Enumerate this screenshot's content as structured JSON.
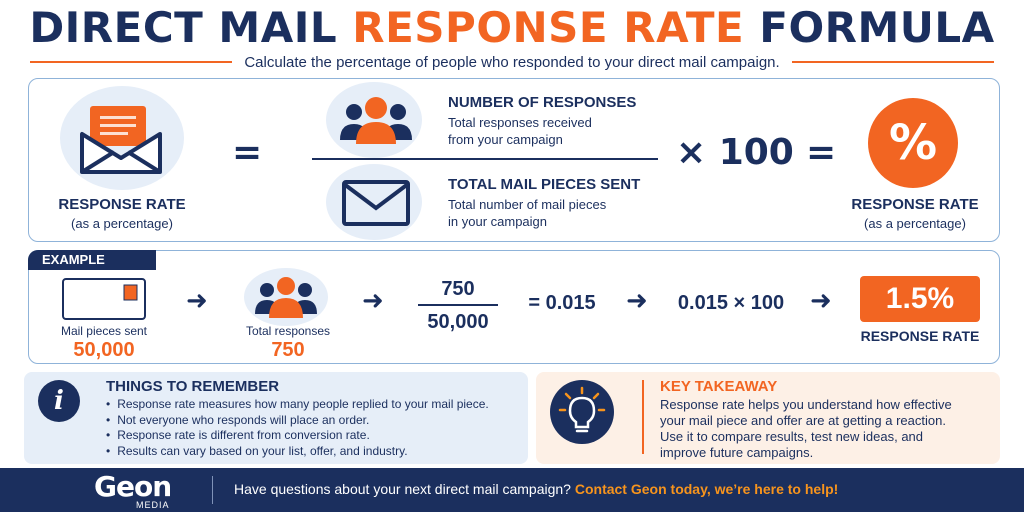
{
  "title": {
    "part1": "DIRECT MAIL ",
    "part2": "RESPONSE RATE",
    "part3": " FORMULA"
  },
  "subtitle": "Calculate the percentage of people who responded to your direct mail campaign.",
  "formula": {
    "left_title": "RESPONSE RATE",
    "left_sub": "(as a percentage)",
    "equals": "=",
    "numerator_title": "NUMBER OF RESPONSES",
    "numerator_sub_1": "Total responses received",
    "numerator_sub_2": "from your campaign",
    "denominator_title": "TOTAL MAIL PIECES SENT",
    "denominator_sub_1": "Total number of mail pieces",
    "denominator_sub_2": "in your campaign",
    "times": "× 100",
    "equals2": "=",
    "percent_symbol": "%",
    "right_title": "RESPONSE RATE",
    "right_sub": "(as a percentage)"
  },
  "example": {
    "tag": "EXAMPLE",
    "mail_label": "Mail pieces sent",
    "mail_value": "50,000",
    "responses_label": "Total responses",
    "responses_value": "750",
    "numerator": "750",
    "denominator": "50,000",
    "equals_value": "= 0.015",
    "multiply": "0.015 × 100",
    "result": "1.5%",
    "result_label": "RESPONSE RATE",
    "arrow": "➜"
  },
  "remember": {
    "icon": "info-icon",
    "title": "THINGS TO REMEMBER",
    "items": [
      "Response rate measures how many people replied to your mail piece.",
      "Not everyone who responds will place an order.",
      "Response rate is different from conversion rate.",
      "Results can vary based on your list, offer, and industry."
    ]
  },
  "takeaway": {
    "icon": "lightbulb-icon",
    "title": "KEY TAKEAWAY",
    "line1": "Response rate helps you understand how effective",
    "line2": "your mail piece and offer are at getting a reaction.",
    "line3": "Use it to compare results, test new ideas, and",
    "line4": "improve future campaigns."
  },
  "footer": {
    "logo": "Geon",
    "logo_sub": "MEDIA",
    "text": "Have questions about your next direct mail campaign? ",
    "cta": "Contact Geon today, we’re here to help!"
  },
  "colors": {
    "navy": "#1b2f5e",
    "orange": "#f26522",
    "light_blue": "#e6eef8",
    "light_orange": "#fdf0e6"
  }
}
